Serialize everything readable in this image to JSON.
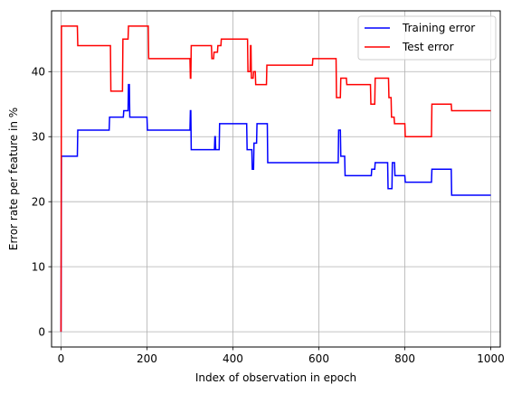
{
  "chart_data": {
    "type": "line",
    "title": "",
    "xlabel": "Index of observation in epoch",
    "ylabel": "Error rate per feature in %",
    "xlim": [
      -22,
      1022
    ],
    "ylim": [
      -2.35,
      49.35
    ],
    "xticks": [
      0,
      200,
      400,
      600,
      800,
      1000
    ],
    "yticks": [
      0,
      10,
      20,
      30,
      40
    ],
    "grid": true,
    "legend_position": "top-right",
    "series": [
      {
        "name": "Training error",
        "color": "#0000ff",
        "points": [
          [
            0,
            0
          ],
          [
            1,
            27
          ],
          [
            38,
            27
          ],
          [
            39,
            31
          ],
          [
            112,
            31
          ],
          [
            113,
            33
          ],
          [
            145,
            33
          ],
          [
            146,
            34
          ],
          [
            156,
            34
          ],
          [
            157,
            38
          ],
          [
            159,
            38
          ],
          [
            160,
            33
          ],
          [
            200,
            33
          ],
          [
            201,
            31
          ],
          [
            300,
            31
          ],
          [
            301,
            34
          ],
          [
            302,
            34
          ],
          [
            303,
            28
          ],
          [
            357,
            28
          ],
          [
            358,
            30
          ],
          [
            359,
            30
          ],
          [
            360,
            28
          ],
          [
            368,
            28
          ],
          [
            369,
            32
          ],
          [
            432,
            32
          ],
          [
            433,
            28
          ],
          [
            444,
            28
          ],
          [
            445,
            25
          ],
          [
            448,
            25
          ],
          [
            449,
            29
          ],
          [
            455,
            29
          ],
          [
            456,
            32
          ],
          [
            480,
            32
          ],
          [
            481,
            26
          ],
          [
            645,
            26
          ],
          [
            646,
            31
          ],
          [
            650,
            31
          ],
          [
            651,
            27
          ],
          [
            660,
            27
          ],
          [
            661,
            24
          ],
          [
            722,
            24
          ],
          [
            723,
            25
          ],
          [
            730,
            25
          ],
          [
            731,
            26
          ],
          [
            760,
            26
          ],
          [
            761,
            22
          ],
          [
            770,
            22
          ],
          [
            771,
            26
          ],
          [
            776,
            26
          ],
          [
            777,
            24
          ],
          [
            800,
            24
          ],
          [
            801,
            23
          ],
          [
            862,
            23
          ],
          [
            863,
            25
          ],
          [
            908,
            25
          ],
          [
            909,
            21
          ],
          [
            1000,
            21
          ]
        ]
      },
      {
        "name": "Test error",
        "color": "#ff0000",
        "points": [
          [
            0,
            0
          ],
          [
            1,
            47
          ],
          [
            38,
            47
          ],
          [
            39,
            44
          ],
          [
            115,
            44
          ],
          [
            116,
            37
          ],
          [
            143,
            37
          ],
          [
            144,
            45
          ],
          [
            156,
            45
          ],
          [
            157,
            47
          ],
          [
            203,
            47
          ],
          [
            204,
            42
          ],
          [
            300,
            42
          ],
          [
            301,
            39
          ],
          [
            302,
            39
          ],
          [
            303,
            44
          ],
          [
            350,
            44
          ],
          [
            351,
            42
          ],
          [
            355,
            42
          ],
          [
            356,
            43
          ],
          [
            364,
            43
          ],
          [
            365,
            44
          ],
          [
            372,
            44
          ],
          [
            373,
            45
          ],
          [
            434,
            45
          ],
          [
            435,
            40
          ],
          [
            440,
            40
          ],
          [
            441,
            44
          ],
          [
            442,
            44
          ],
          [
            443,
            39
          ],
          [
            447,
            39
          ],
          [
            448,
            40
          ],
          [
            452,
            40
          ],
          [
            453,
            38
          ],
          [
            478,
            38
          ],
          [
            479,
            41
          ],
          [
            585,
            41
          ],
          [
            586,
            42
          ],
          [
            640,
            42
          ],
          [
            641,
            36
          ],
          [
            650,
            36
          ],
          [
            651,
            39
          ],
          [
            664,
            39
          ],
          [
            665,
            38
          ],
          [
            720,
            38
          ],
          [
            721,
            35
          ],
          [
            730,
            35
          ],
          [
            731,
            39
          ],
          [
            762,
            39
          ],
          [
            763,
            36
          ],
          [
            768,
            36
          ],
          [
            769,
            33
          ],
          [
            775,
            33
          ],
          [
            776,
            32
          ],
          [
            800,
            32
          ],
          [
            801,
            30
          ],
          [
            862,
            30
          ],
          [
            863,
            35
          ],
          [
            908,
            35
          ],
          [
            909,
            34
          ],
          [
            1000,
            34
          ]
        ]
      }
    ]
  }
}
